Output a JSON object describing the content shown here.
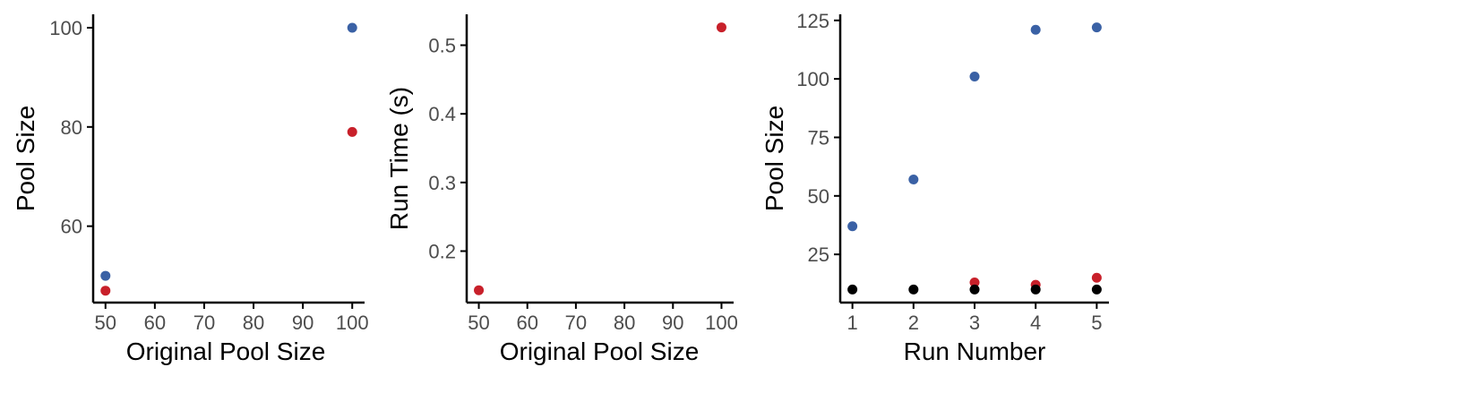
{
  "chart_data": [
    {
      "type": "scatter",
      "xlabel": "Original Pool Size",
      "ylabel": "Pool Size",
      "xlim": [
        47.5,
        102.5
      ],
      "ylim": [
        44.6,
        102.7
      ],
      "xticks": [
        50,
        60,
        70,
        80,
        90,
        100
      ],
      "yticks": [
        60,
        80,
        100
      ],
      "grid": false,
      "series": [
        {
          "color": "#3a61a5",
          "x": [
            50,
            100
          ],
          "y": [
            50,
            100
          ]
        },
        {
          "color": "#c8202a",
          "x": [
            50,
            100
          ],
          "y": [
            47,
            79
          ]
        }
      ]
    },
    {
      "type": "scatter",
      "xlabel": "Original Pool Size",
      "ylabel": "Run Time (s)",
      "xlim": [
        47.5,
        102.5
      ],
      "ylim": [
        0.125,
        0.545
      ],
      "xticks": [
        50,
        60,
        70,
        80,
        90,
        100
      ],
      "yticks": [
        0.2,
        0.3,
        0.4,
        0.5
      ],
      "grid": false,
      "series": [
        {
          "color": "#c8202a",
          "x": [
            50,
            100
          ],
          "y": [
            0.143,
            0.526
          ]
        }
      ]
    },
    {
      "type": "scatter",
      "xlabel": "Run Number",
      "ylabel": "Pool Size",
      "xlim": [
        0.8,
        5.2
      ],
      "ylim": [
        4.4,
        127.6
      ],
      "xticks": [
        1,
        2,
        3,
        4,
        5
      ],
      "yticks": [
        25,
        50,
        75,
        100,
        125
      ],
      "grid": false,
      "series": [
        {
          "color": "#3a61a5",
          "x": [
            1,
            2,
            3,
            4,
            5
          ],
          "y": [
            37,
            57,
            101,
            121,
            122
          ]
        },
        {
          "color": "#c8202a",
          "x": [
            3,
            4,
            5
          ],
          "y": [
            13,
            12,
            15
          ]
        },
        {
          "color": "#000000",
          "x": [
            1,
            2,
            3,
            4,
            5
          ],
          "y": [
            10,
            10,
            10,
            10,
            10
          ]
        }
      ]
    }
  ]
}
